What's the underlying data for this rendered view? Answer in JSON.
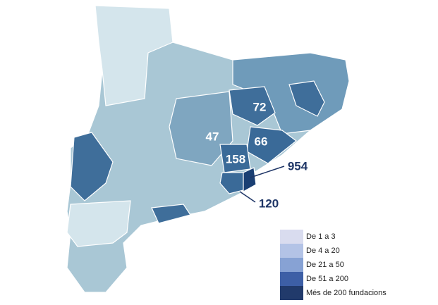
{
  "map_labels": [
    72,
    47,
    66,
    158,
    954,
    120
  ],
  "legend": [
    {
      "label": "De 1 a 3",
      "color": "#d9dcef"
    },
    {
      "label": "De 4 a 20",
      "color": "#b3c3e6"
    },
    {
      "label": "De 21 a 50",
      "color": "#87a2d4"
    },
    {
      "label": "De 51 a 200",
      "color": "#3d5fa6"
    },
    {
      "label": "Més de 200 fundacions",
      "color": "#213a6b"
    }
  ]
}
